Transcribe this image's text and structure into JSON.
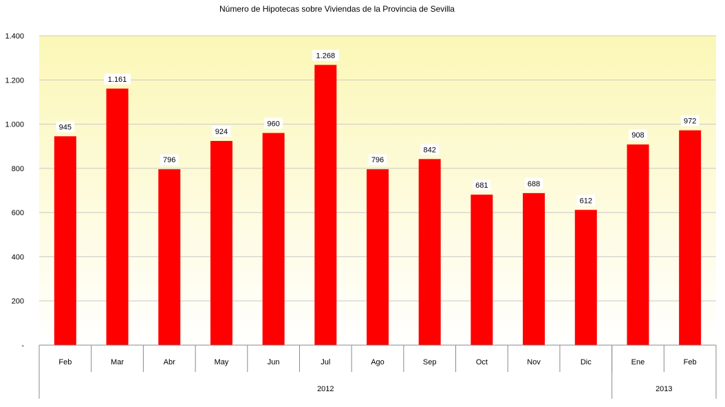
{
  "chart_data": {
    "type": "bar",
    "title": "Número de Hipotecas sobre Viviendas de la Provincia de Sevilla",
    "categories": [
      "Feb",
      "Mar",
      "Abr",
      "May",
      "Jun",
      "Jul",
      "Ago",
      "Sep",
      "Oct",
      "Nov",
      "Dic",
      "Ene",
      "Feb"
    ],
    "values": [
      945,
      1161,
      796,
      924,
      960,
      1268,
      796,
      842,
      681,
      688,
      612,
      908,
      972
    ],
    "data_labels": [
      "945",
      "1.161",
      "796",
      "924",
      "960",
      "1.268",
      "796",
      "842",
      "681",
      "688",
      "612",
      "908",
      "972"
    ],
    "groups": [
      {
        "label": "2012",
        "count": 11
      },
      {
        "label": "2013",
        "count": 2
      }
    ],
    "y_ticks": [
      {
        "value": 0,
        "label": "-"
      },
      {
        "value": 200,
        "label": "200"
      },
      {
        "value": 400,
        "label": "400"
      },
      {
        "value": 600,
        "label": "600"
      },
      {
        "value": 800,
        "label": "800"
      },
      {
        "value": 1000,
        "label": "1.000"
      },
      {
        "value": 1200,
        "label": "1.200"
      },
      {
        "value": 1400,
        "label": "1.400"
      }
    ],
    "ylim": [
      0,
      1400
    ],
    "grid": true,
    "legend": "none",
    "colors": {
      "bar": "#ff0000",
      "plot_top": "#fbf7b6",
      "plot_bottom": "#ffffff",
      "grid": "#c8c8c8"
    }
  }
}
